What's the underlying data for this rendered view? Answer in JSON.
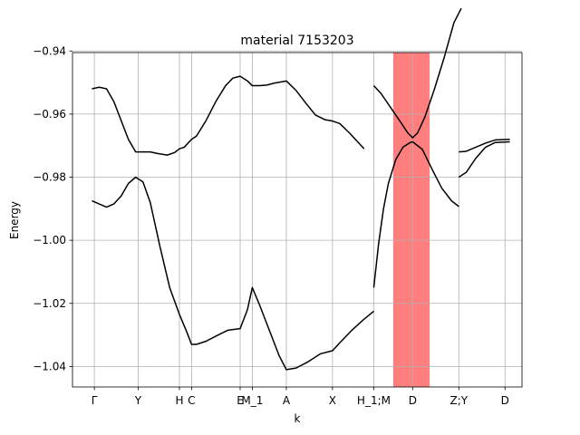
{
  "chart_data": {
    "type": "line",
    "title": "material 7153203",
    "xlabel": "k",
    "ylabel": "Energy",
    "xlim": [
      0,
      9.25
    ],
    "ylim": [
      -1.0465,
      -0.9405
    ],
    "grid": true,
    "highlight_band": {
      "x": [
        6.6,
        7.35
      ],
      "color": "#ff0000"
    },
    "x_ticks": [
      {
        "x": 0.45,
        "label": "Γ"
      },
      {
        "x": 1.35,
        "label": "Y"
      },
      {
        "x": 2.2,
        "label": "H"
      },
      {
        "x": 2.45,
        "label": "C"
      },
      {
        "x": 3.45,
        "label": "E"
      },
      {
        "x": 3.7,
        "label": "M_1"
      },
      {
        "x": 4.4,
        "label": "A"
      },
      {
        "x": 5.35,
        "label": "X"
      },
      {
        "x": 6.2,
        "label": "H_1;M"
      },
      {
        "x": 7.0,
        "label": "D"
      },
      {
        "x": 7.95,
        "label": "Z;Y"
      },
      {
        "x": 8.9,
        "label": "D"
      }
    ],
    "y_ticks": [
      -1.04,
      -1.02,
      -1.0,
      -0.98,
      -0.96,
      -0.94
    ],
    "y_tick_labels": [
      "−1.04",
      "−1.02",
      "−1.00",
      "−0.98",
      "−0.96",
      "−0.94"
    ],
    "series": [
      {
        "color": "#000000",
        "segments": [
          [
            [
              0.4,
              -0.952
            ],
            [
              0.55,
              -0.9515
            ],
            [
              0.7,
              -0.952
            ],
            [
              0.85,
              -0.956
            ],
            [
              1.0,
              -0.962
            ],
            [
              1.15,
              -0.968
            ],
            [
              1.3,
              -0.972
            ],
            [
              1.45,
              -0.972
            ],
            [
              1.6,
              -0.972
            ],
            [
              1.75,
              -0.9725
            ],
            [
              1.95,
              -0.973
            ],
            [
              2.1,
              -0.9722
            ],
            [
              2.2,
              -0.971
            ],
            [
              2.3,
              -0.9705
            ],
            [
              2.45,
              -0.968
            ],
            [
              2.55,
              -0.967
            ],
            [
              2.75,
              -0.962
            ],
            [
              2.95,
              -0.956
            ],
            [
              3.15,
              -0.951
            ],
            [
              3.3,
              -0.9486
            ],
            [
              3.45,
              -0.948
            ],
            [
              3.6,
              -0.9495
            ],
            [
              3.7,
              -0.951
            ],
            [
              3.85,
              -0.951
            ],
            [
              4.0,
              -0.9508
            ],
            [
              4.15,
              -0.9502
            ],
            [
              4.4,
              -0.9495
            ],
            [
              4.6,
              -0.9525
            ],
            [
              4.8,
              -0.9565
            ],
            [
              5.0,
              -0.9603
            ],
            [
              5.2,
              -0.9618
            ],
            [
              5.35,
              -0.9622
            ],
            [
              5.5,
              -0.963
            ],
            [
              5.7,
              -0.966
            ],
            [
              6.0,
              -0.971
            ]
          ],
          [
            [
              0.4,
              -0.9875
            ],
            [
              0.55,
              -0.9885
            ],
            [
              0.7,
              -0.9895
            ],
            [
              0.85,
              -0.9885
            ],
            [
              1.0,
              -0.986
            ],
            [
              1.15,
              -0.982
            ],
            [
              1.3,
              -0.98
            ],
            [
              1.45,
              -0.9815
            ],
            [
              1.6,
              -0.988
            ],
            [
              1.8,
              -1.002
            ],
            [
              2.0,
              -1.015
            ],
            [
              2.2,
              -1.0235
            ],
            [
              2.35,
              -1.029
            ],
            [
              2.45,
              -1.033
            ],
            [
              2.55,
              -1.033
            ],
            [
              2.75,
              -1.032
            ],
            [
              3.0,
              -1.03
            ],
            [
              3.2,
              -1.0285
            ],
            [
              3.45,
              -1.028
            ],
            [
              3.6,
              -1.022
            ],
            [
              3.7,
              -1.015
            ],
            [
              3.85,
              -1.0205
            ],
            [
              4.05,
              -1.0285
            ],
            [
              4.25,
              -1.0365
            ],
            [
              4.4,
              -1.041
            ],
            [
              4.6,
              -1.0405
            ],
            [
              4.85,
              -1.0385
            ],
            [
              5.1,
              -1.036
            ],
            [
              5.35,
              -1.035
            ],
            [
              5.5,
              -1.0325
            ],
            [
              5.75,
              -1.0285
            ],
            [
              6.0,
              -1.025
            ],
            [
              6.2,
              -1.0225
            ]
          ]
        ]
      },
      {
        "color": "#000000",
        "segments": [
          [
            [
              6.2,
              -0.951
            ],
            [
              6.35,
              -0.9535
            ],
            [
              6.55,
              -0.958
            ],
            [
              6.75,
              -0.9625
            ],
            [
              6.9,
              -0.966
            ],
            [
              7.0,
              -0.9675
            ],
            [
              7.1,
              -0.966
            ],
            [
              7.25,
              -0.961
            ],
            [
              7.45,
              -0.952
            ],
            [
              7.65,
              -0.942
            ],
            [
              7.85,
              -0.931
            ],
            [
              8.0,
              -0.9265
            ]
          ],
          [
            [
              6.2,
              -1.015
            ],
            [
              6.3,
              -1.001
            ],
            [
              6.4,
              -0.99
            ],
            [
              6.5,
              -0.982
            ],
            [
              6.65,
              -0.9745
            ],
            [
              6.8,
              -0.9705
            ],
            [
              6.95,
              -0.969
            ],
            [
              7.0,
              -0.9688
            ],
            [
              7.2,
              -0.9712
            ],
            [
              7.4,
              -0.9775
            ],
            [
              7.6,
              -0.9835
            ],
            [
              7.8,
              -0.9875
            ],
            [
              7.95,
              -0.9893
            ]
          ],
          [
            [
              7.95,
              -0.972
            ],
            [
              8.1,
              -0.9718
            ],
            [
              8.3,
              -0.9705
            ],
            [
              8.5,
              -0.9692
            ],
            [
              8.7,
              -0.9682
            ],
            [
              9.0,
              -0.968
            ]
          ],
          [
            [
              7.95,
              -0.98
            ],
            [
              8.1,
              -0.9785
            ],
            [
              8.3,
              -0.974
            ],
            [
              8.5,
              -0.9705
            ],
            [
              8.7,
              -0.969
            ],
            [
              9.0,
              -0.9688
            ]
          ]
        ]
      }
    ]
  }
}
